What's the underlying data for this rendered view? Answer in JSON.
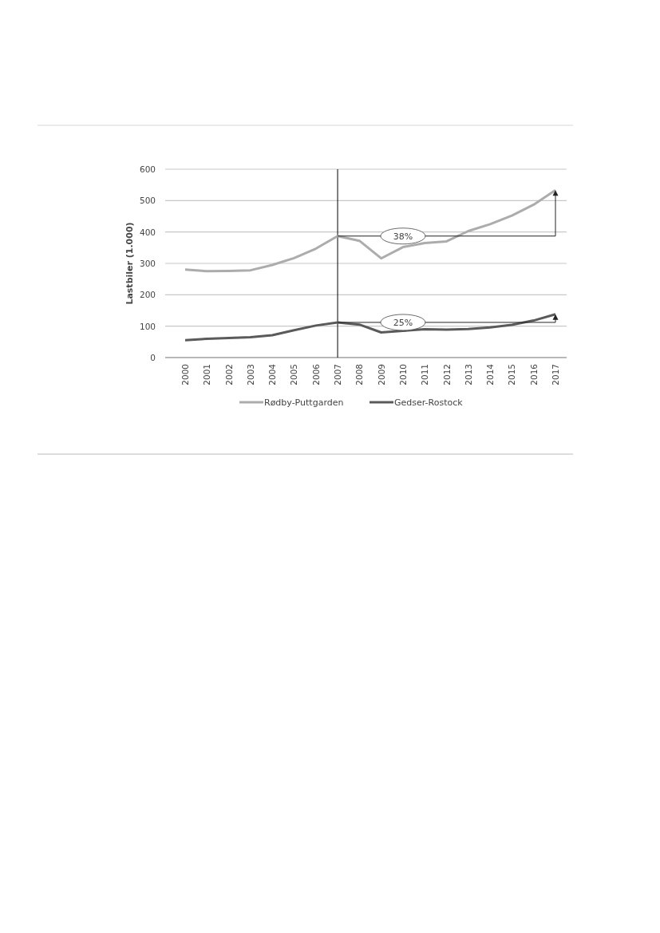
{
  "chart_data": {
    "type": "line",
    "ylabel": "Lastbiler (1.000)",
    "categories": [
      "2000",
      "2001",
      "2002",
      "2003",
      "2004",
      "2005",
      "2006",
      "2007",
      "2008",
      "2009",
      "2010",
      "2011",
      "2012",
      "2013",
      "2014",
      "2015",
      "2016",
      "2017"
    ],
    "series": [
      {
        "name": "Rødby-Puttgarden",
        "color": "#acacac",
        "values": [
          280,
          275,
          276,
          278,
          295,
          317,
          347,
          387,
          372,
          316,
          352,
          365,
          370,
          403,
          425,
          452,
          487,
          533
        ]
      },
      {
        "name": "Gedser-Rostock",
        "color": "#5a5a5a",
        "values": [
          55,
          60,
          62,
          65,
          71,
          87,
          102,
          112,
          105,
          80,
          85,
          90,
          89,
          91,
          96,
          104,
          118,
          138
        ]
      }
    ],
    "ylim": [
      0,
      600
    ],
    "yticks": [
      0,
      100,
      200,
      300,
      400,
      500,
      600
    ],
    "grid": "y",
    "legend": "bottom",
    "marker": "none",
    "line_style": "solid",
    "ref_lines": [
      {
        "axis": "x",
        "value": "2007",
        "color": "#000000"
      }
    ],
    "annotations": [
      "38%",
      "25%"
    ]
  }
}
